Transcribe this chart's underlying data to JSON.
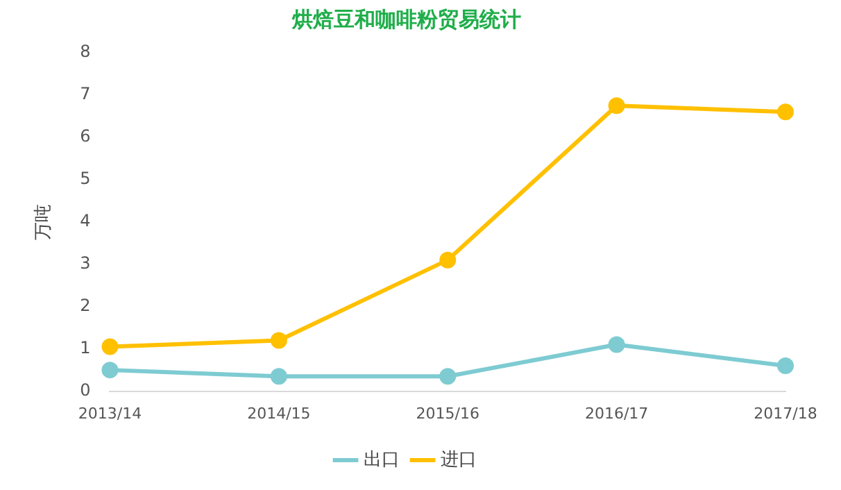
{
  "chart_data": {
    "type": "line",
    "title": "烘焙豆和咖啡粉贸易统计",
    "ylabel": "万吨",
    "categories": [
      "2013/14",
      "2014/15",
      "2015/16",
      "2016/17",
      "2017/18"
    ],
    "series": [
      {
        "name": "出口",
        "color": "#7ecbd2",
        "values": [
          0.5,
          0.35,
          0.35,
          1.1,
          0.6
        ]
      },
      {
        "name": "进口",
        "color": "#ffc000",
        "values": [
          1.05,
          1.2,
          3.1,
          6.75,
          6.6
        ]
      }
    ],
    "ylim": [
      0,
      8
    ],
    "yticks": [
      0,
      1,
      2,
      3,
      4,
      5,
      6,
      7,
      8
    ],
    "grid": false,
    "legend": "bottom",
    "marker": "circle",
    "line_style": "solid"
  }
}
